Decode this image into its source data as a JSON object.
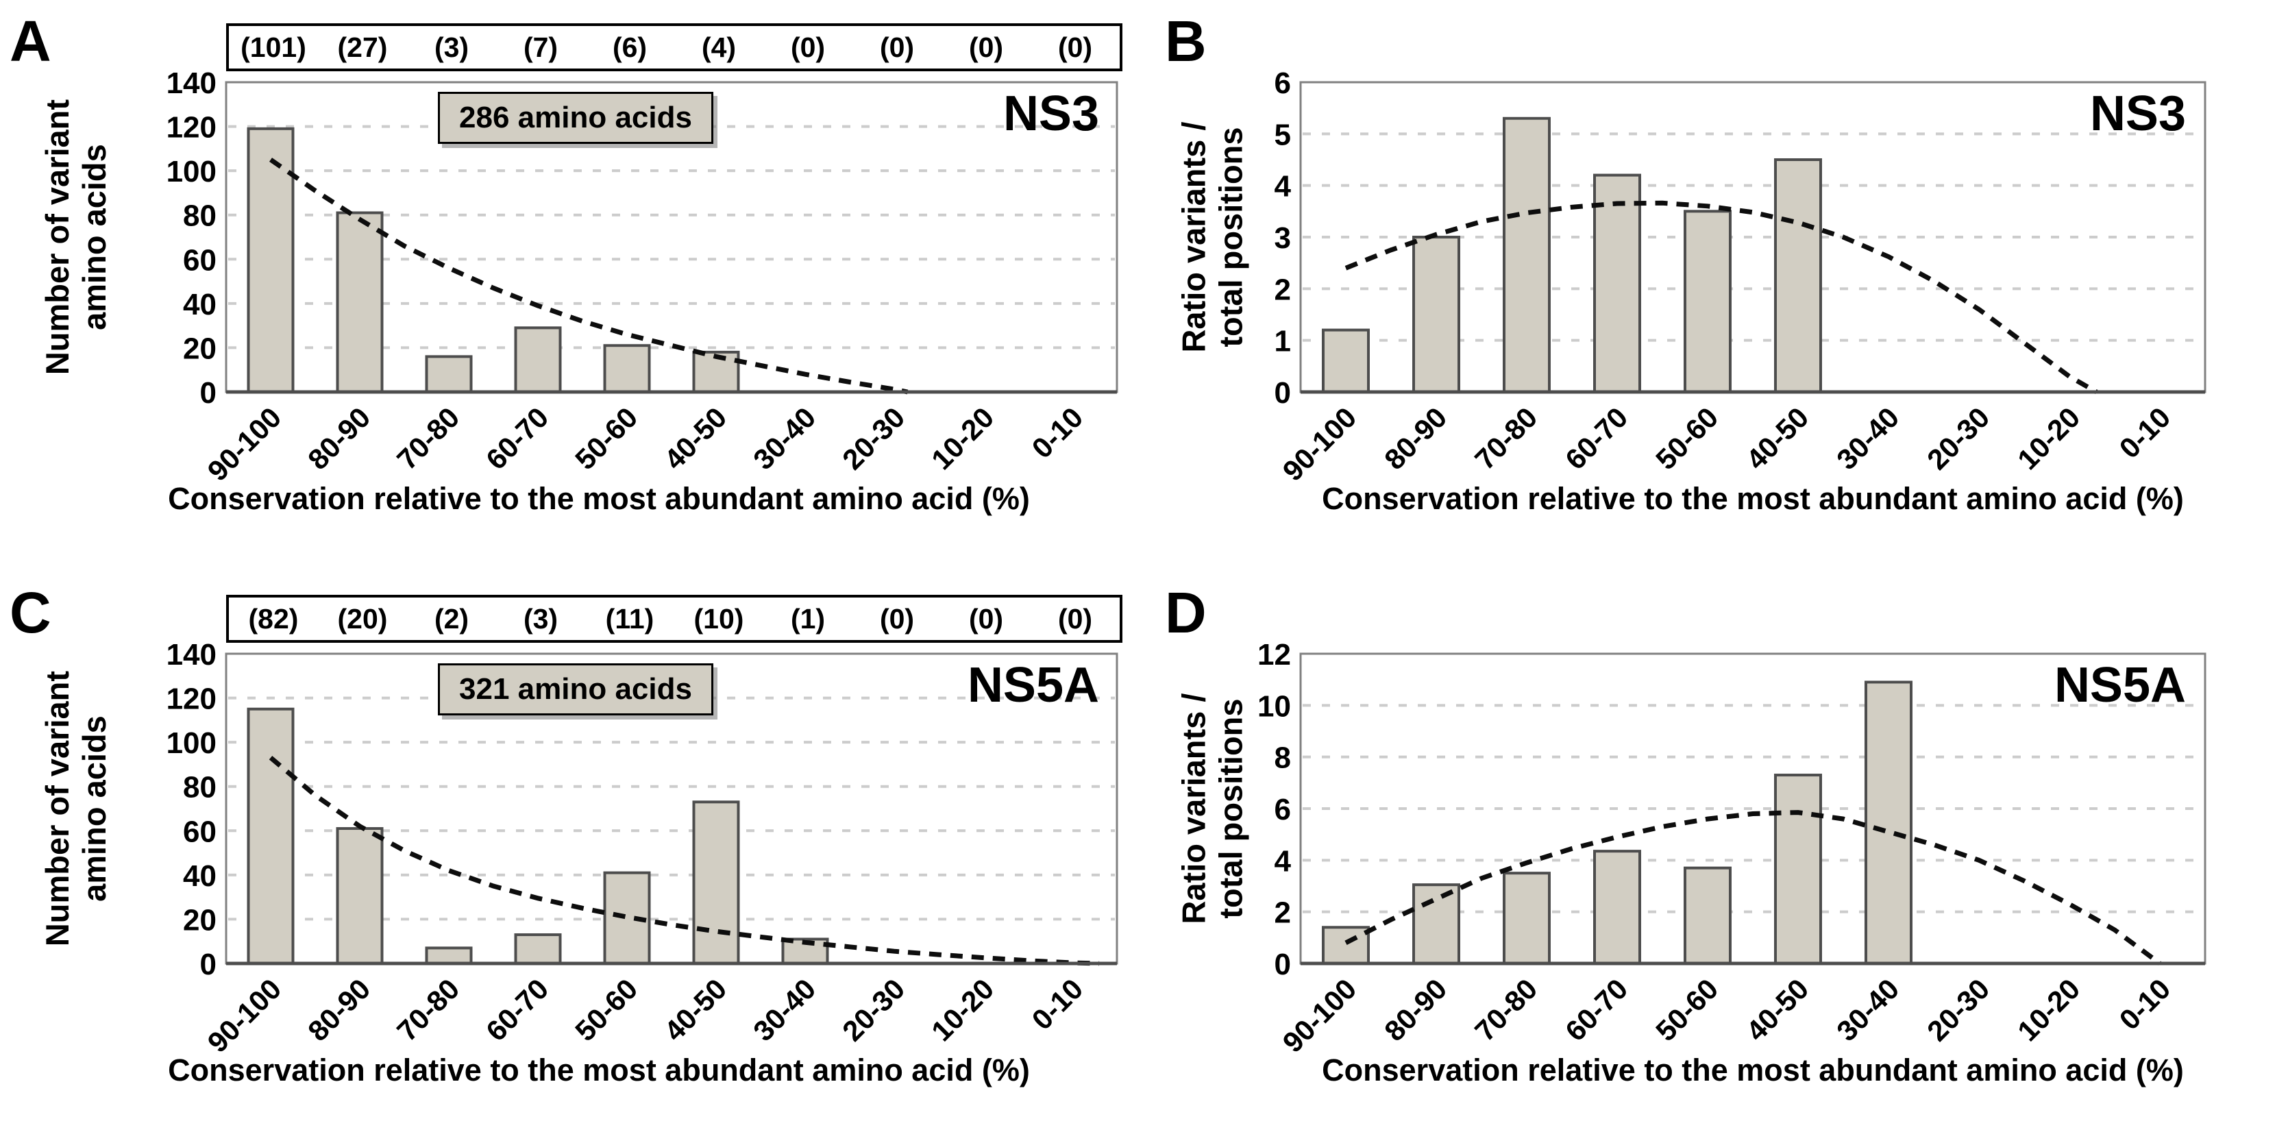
{
  "styles": {
    "bar_fill": "#d2cec3",
    "bar_border": "#4d4d4d",
    "frame": "#808080",
    "baseline": "#4d4d4d",
    "gridline": "#cccccc",
    "trend": "#0d0d0d",
    "counts_border": "#000000",
    "info_box_bg": "#d2cec3"
  },
  "chart_data": [
    {
      "type": "bar",
      "panel": "A",
      "title": "NS3",
      "annotation": "286 amino acids",
      "categories": [
        "90-100",
        "80-90",
        "70-80",
        "60-70",
        "50-60",
        "40-50",
        "30-40",
        "20-30",
        "10-20",
        "0-10"
      ],
      "values": [
        119,
        81,
        16,
        29,
        21,
        18,
        0,
        0,
        0,
        0
      ],
      "counts_row": [
        "(101)",
        "(27)",
        "(3)",
        "(7)",
        "(6)",
        "(4)",
        "(0)",
        "(0)",
        "(0)",
        "(0)"
      ],
      "xlabel": "Conservation relative to the most abundant amino acid (%)",
      "ylabel": [
        "Number of variant",
        "amino acids"
      ],
      "ylim": [
        0,
        140
      ],
      "ytick_step": 20,
      "grid": "dashed-horizontal",
      "legend": "none",
      "trend_dashed": [
        [
          0,
          105
        ],
        [
          0.5,
          91
        ],
        [
          1,
          78
        ],
        [
          1.5,
          66
        ],
        [
          2,
          56
        ],
        [
          2.5,
          47
        ],
        [
          3,
          39
        ],
        [
          3.5,
          32
        ],
        [
          4,
          26
        ],
        [
          4.5,
          21
        ],
        [
          5,
          16
        ],
        [
          5.5,
          12
        ],
        [
          6,
          8
        ],
        [
          6.5,
          4.5
        ],
        [
          7,
          1.2
        ],
        [
          7.15,
          0
        ]
      ]
    },
    {
      "type": "bar",
      "panel": "B",
      "title": "NS3",
      "categories": [
        "90-100",
        "80-90",
        "70-80",
        "60-70",
        "50-60",
        "40-50",
        "30-40",
        "20-30",
        "10-20",
        "0-10"
      ],
      "values": [
        1.2,
        3.0,
        5.3,
        4.2,
        3.5,
        4.5,
        0,
        0,
        0,
        0
      ],
      "xlabel": "Conservation relative to the most abundant amino acid (%)",
      "ylabel": [
        "Ratio variants /",
        "total positions"
      ],
      "ylim": [
        0,
        6
      ],
      "ytick_step": 1,
      "grid": "dashed-horizontal",
      "legend": "none",
      "trend_dashed": [
        [
          0,
          2.4
        ],
        [
          0.5,
          2.75
        ],
        [
          1,
          3.05
        ],
        [
          1.5,
          3.3
        ],
        [
          2,
          3.47
        ],
        [
          2.5,
          3.58
        ],
        [
          3,
          3.65
        ],
        [
          3.5,
          3.66
        ],
        [
          4,
          3.6
        ],
        [
          4.5,
          3.48
        ],
        [
          5,
          3.28
        ],
        [
          5.5,
          3.0
        ],
        [
          6,
          2.62
        ],
        [
          6.5,
          2.15
        ],
        [
          7,
          1.6
        ],
        [
          7.5,
          0.95
        ],
        [
          8,
          0.3
        ],
        [
          8.3,
          0
        ]
      ]
    },
    {
      "type": "bar",
      "panel": "C",
      "title": "NS5A",
      "annotation": "321 amino acids",
      "categories": [
        "90-100",
        "80-90",
        "70-80",
        "60-70",
        "50-60",
        "40-50",
        "30-40",
        "20-30",
        "10-20",
        "0-10"
      ],
      "values": [
        115,
        61,
        7,
        13,
        41,
        73,
        11,
        0,
        0,
        0
      ],
      "counts_row": [
        "(82)",
        "(20)",
        "(2)",
        "(3)",
        "(11)",
        "(10)",
        "(1)",
        "(0)",
        "(0)",
        "(0)"
      ],
      "xlabel": "Conservation relative to the most abundant amino acid (%)",
      "ylabel": [
        "Number of variant",
        "amino acids"
      ],
      "ylim": [
        0,
        140
      ],
      "ytick_step": 20,
      "grid": "dashed-horizontal",
      "legend": "none",
      "trend_dashed": [
        [
          0,
          93
        ],
        [
          0.5,
          76
        ],
        [
          1,
          62
        ],
        [
          1.5,
          51
        ],
        [
          2,
          42
        ],
        [
          2.5,
          35
        ],
        [
          3,
          29.5
        ],
        [
          3.5,
          25
        ],
        [
          4,
          21
        ],
        [
          4.5,
          17.5
        ],
        [
          5,
          14.5
        ],
        [
          5.5,
          12
        ],
        [
          6,
          9.5
        ],
        [
          6.5,
          7.5
        ],
        [
          7,
          5.5
        ],
        [
          7.5,
          4
        ],
        [
          8,
          2.6
        ],
        [
          8.5,
          1.3
        ],
        [
          9,
          0.3
        ],
        [
          9.3,
          0
        ]
      ]
    },
    {
      "type": "bar",
      "panel": "D",
      "title": "NS5A",
      "categories": [
        "90-100",
        "80-90",
        "70-80",
        "60-70",
        "50-60",
        "40-50",
        "30-40",
        "20-30",
        "10-20",
        "0-10"
      ],
      "values": [
        1.4,
        3.05,
        3.5,
        4.35,
        3.7,
        7.3,
        10.9,
        0,
        0,
        0
      ],
      "xlabel": "Conservation relative to the most abundant amino acid (%)",
      "ylabel": [
        "Ratio variants /",
        "total positions"
      ],
      "ylim": [
        0,
        12
      ],
      "ytick_step": 2,
      "grid": "dashed-horizontal",
      "legend": "none",
      "trend_dashed": [
        [
          0,
          0.8
        ],
        [
          0.5,
          1.7
        ],
        [
          1,
          2.5
        ],
        [
          1.5,
          3.3
        ],
        [
          2,
          3.9
        ],
        [
          2.5,
          4.45
        ],
        [
          3,
          4.9
        ],
        [
          3.5,
          5.3
        ],
        [
          4,
          5.6
        ],
        [
          4.5,
          5.8
        ],
        [
          5,
          5.85
        ],
        [
          5.5,
          5.6
        ],
        [
          6,
          5.1
        ],
        [
          6.5,
          4.6
        ],
        [
          7,
          4.0
        ],
        [
          7.5,
          3.2
        ],
        [
          8,
          2.3
        ],
        [
          8.5,
          1.3
        ],
        [
          9,
          0
        ]
      ]
    }
  ]
}
